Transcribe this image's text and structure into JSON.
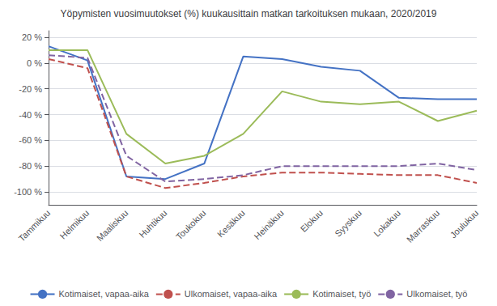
{
  "chart_data": {
    "type": "line",
    "title": "Yöpymisten vuosimuutokset (%) kuukausittain matkan tarkoituksen mukaan, 2020/2019",
    "categories": [
      "Tammikuu",
      "Helmikuu",
      "Maaliskuu",
      "Huhtikuu",
      "Toukokuu",
      "Kesäkuu",
      "Heinäkuu",
      "Elokuu",
      "Syyskuu",
      "Lokakuu",
      "Marraskuu",
      "Joulukuu"
    ],
    "series": [
      {
        "name": "Kotimaiset, vapaa-aika",
        "color": "#4472C4",
        "line_style": "solid",
        "values": [
          13,
          2,
          -88,
          -90,
          -78,
          5,
          3,
          -3,
          -6,
          -27,
          -28,
          -28
        ]
      },
      {
        "name": "Ulkomaiset, vapaa-aika",
        "color": "#C0504D",
        "line_style": "dashed",
        "values": [
          3,
          -4,
          -88,
          -97,
          -93,
          -88,
          -85,
          -85,
          -86,
          -87,
          -87,
          -93
        ]
      },
      {
        "name": "Kotimaiset, työ",
        "color": "#9BBB59",
        "line_style": "solid",
        "values": [
          10,
          10,
          -55,
          -78,
          -72,
          -55,
          -22,
          -30,
          -32,
          -30,
          -45,
          -37
        ]
      },
      {
        "name": "Ulkomaiset, työ",
        "color": "#8064A2",
        "line_style": "dashed",
        "values": [
          6,
          4,
          -72,
          -92,
          -90,
          -87,
          -80,
          -80,
          -80,
          -80,
          -78,
          -83
        ]
      }
    ],
    "ylim": [
      -110,
      25
    ],
    "yticks": [
      {
        "value": 20,
        "label": "20 %"
      },
      {
        "value": 0,
        "label": "0 %"
      },
      {
        "value": -20,
        "label": "-20 %"
      },
      {
        "value": -40,
        "label": "-40 %"
      },
      {
        "value": -60,
        "label": "-60 %"
      },
      {
        "value": -80,
        "label": "-80 %"
      },
      {
        "value": -100,
        "label": "-100 %"
      }
    ],
    "grid": true,
    "legend": "bottom"
  }
}
